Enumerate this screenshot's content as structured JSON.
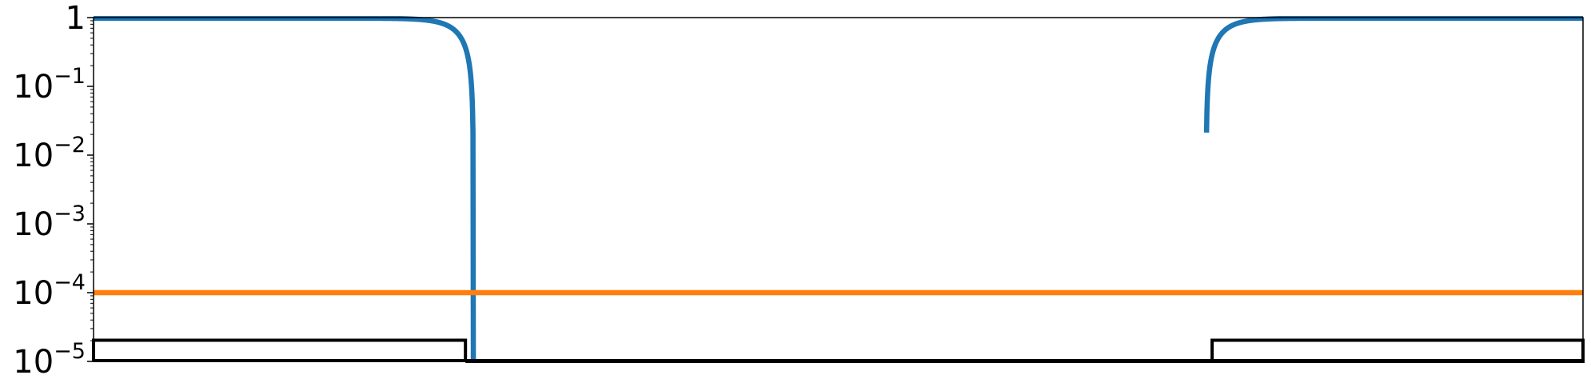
{
  "chart_data": {
    "type": "line",
    "title": "",
    "xlabel": "",
    "ylabel": "",
    "x_ticks_visible": false,
    "xlim": [
      0,
      1
    ],
    "ylim": [
      1e-05,
      1
    ],
    "yscale": "log",
    "y_ticks": [
      {
        "value": 1,
        "base": "1",
        "exp": ""
      },
      {
        "value": 0.1,
        "base": "10",
        "exp": "−1"
      },
      {
        "value": 0.01,
        "base": "10",
        "exp": "−2"
      },
      {
        "value": 0.001,
        "base": "10",
        "exp": "−3"
      },
      {
        "value": 0.0001,
        "base": "10",
        "exp": "−4"
      },
      {
        "value": 1e-05,
        "base": "10",
        "exp": "−5"
      }
    ],
    "grid": false,
    "series": [
      {
        "color": "#1f77b4",
        "shape": "band-stop",
        "plateau": 0.98,
        "edges": [
          0.255,
          0.747
        ],
        "transition_width": 0.0114
      },
      {
        "color": "#ff7f0e",
        "constant": 0.0001
      }
    ],
    "annotations": {
      "step_outline": {
        "color": "#000000",
        "level_high": 2.03e-05,
        "level_low": 1e-05,
        "edges": [
          0.2497,
          0.751
        ]
      }
    }
  }
}
